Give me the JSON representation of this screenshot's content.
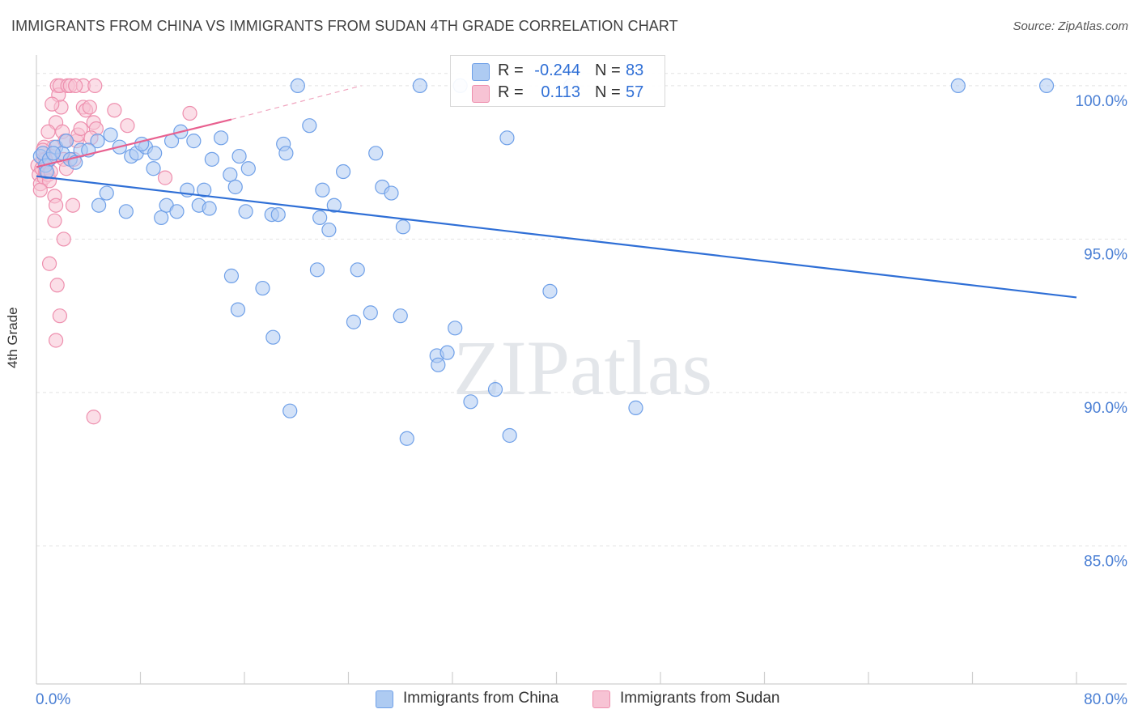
{
  "chart_data": {
    "type": "scatter",
    "title": "IMMIGRANTS FROM CHINA VS IMMIGRANTS FROM SUDAN 4TH GRADE CORRELATION CHART",
    "source": "Source: ZipAtlas.com",
    "xlabel": "",
    "ylabel": "4th Grade",
    "xlim": [
      0,
      80
    ],
    "ylim": [
      80.5,
      101.0
    ],
    "x_tick_labels": [
      "0.0%",
      "80.0%"
    ],
    "y_ticks": [
      85,
      90,
      95,
      100
    ],
    "y_tick_labels": [
      "85.0%",
      "90.0%",
      "95.0%",
      "100.0%"
    ],
    "grid": true,
    "watermark": "ZIPatlas",
    "series": [
      {
        "name": "Immigrants from China",
        "color": "#6fa0e8",
        "fill": "#aecbf2",
        "line_color": "#2f6fd6",
        "R": "-0.244",
        "N": "83",
        "trend": {
          "x0": 0,
          "y0": 97.05,
          "x1": 80,
          "y1": 93.1
        },
        "points": [
          [
            0.3,
            97.7
          ],
          [
            0.5,
            97.8
          ],
          [
            0.7,
            97.4
          ],
          [
            1.0,
            97.6
          ],
          [
            1.5,
            98.0
          ],
          [
            2.0,
            97.8
          ],
          [
            2.6,
            97.6
          ],
          [
            3.4,
            97.9
          ],
          [
            4.7,
            98.2
          ],
          [
            5.7,
            98.4
          ],
          [
            5.4,
            96.5
          ],
          [
            4.8,
            96.1
          ],
          [
            6.9,
            95.9
          ],
          [
            6.4,
            98.0
          ],
          [
            7.3,
            97.7
          ],
          [
            7.7,
            97.8
          ],
          [
            8.4,
            98.0
          ],
          [
            8.1,
            98.1
          ],
          [
            9.1,
            97.8
          ],
          [
            9.0,
            97.3
          ],
          [
            9.6,
            95.7
          ],
          [
            10.0,
            96.1
          ],
          [
            10.4,
            98.2
          ],
          [
            10.8,
            95.9
          ],
          [
            11.1,
            98.5
          ],
          [
            11.6,
            96.6
          ],
          [
            12.1,
            98.2
          ],
          [
            12.5,
            96.1
          ],
          [
            12.9,
            96.6
          ],
          [
            13.3,
            96.0
          ],
          [
            13.5,
            97.6
          ],
          [
            14.2,
            98.3
          ],
          [
            14.9,
            97.1
          ],
          [
            15.6,
            97.7
          ],
          [
            15.3,
            96.7
          ],
          [
            16.1,
            95.9
          ],
          [
            16.3,
            97.3
          ],
          [
            17.4,
            93.4
          ],
          [
            18.1,
            95.8
          ],
          [
            18.6,
            95.8
          ],
          [
            15.0,
            93.8
          ],
          [
            15.5,
            92.7
          ],
          [
            19.0,
            98.1
          ],
          [
            19.2,
            97.8
          ],
          [
            20.1,
            100.0
          ],
          [
            21.0,
            98.7
          ],
          [
            21.8,
            95.7
          ],
          [
            22.0,
            96.6
          ],
          [
            22.5,
            95.3
          ],
          [
            22.9,
            96.1
          ],
          [
            21.6,
            94.0
          ],
          [
            23.6,
            97.2
          ],
          [
            24.7,
            94.0
          ],
          [
            24.4,
            92.3
          ],
          [
            25.7,
            92.6
          ],
          [
            26.1,
            97.8
          ],
          [
            26.6,
            96.7
          ],
          [
            27.3,
            96.5
          ],
          [
            28.2,
            95.4
          ],
          [
            28.0,
            92.5
          ],
          [
            29.5,
            100.0
          ],
          [
            30.8,
            91.2
          ],
          [
            30.9,
            90.9
          ],
          [
            31.6,
            91.3
          ],
          [
            32.2,
            92.1
          ],
          [
            32.6,
            100.0
          ],
          [
            33.4,
            89.7
          ],
          [
            35.3,
            90.1
          ],
          [
            36.2,
            98.3
          ],
          [
            36.4,
            88.6
          ],
          [
            39.5,
            93.3
          ],
          [
            41.1,
            100.0
          ],
          [
            46.1,
            89.5
          ],
          [
            70.9,
            100.0
          ],
          [
            77.7,
            100.0
          ],
          [
            19.5,
            89.4
          ],
          [
            28.5,
            88.5
          ],
          [
            18.2,
            91.8
          ],
          [
            0.8,
            97.2
          ],
          [
            1.3,
            97.8
          ],
          [
            2.3,
            98.2
          ],
          [
            3.0,
            97.5
          ],
          [
            4.0,
            97.9
          ]
        ]
      },
      {
        "name": "Immigrants from Sudan",
        "color": "#ee8fae",
        "fill": "#f7c3d4",
        "line_color": "#e8608f",
        "R": "0.113",
        "N": "57",
        "trend": {
          "x0": 0,
          "y0": 97.35,
          "x1": 15,
          "y1": 98.9
        },
        "trend_dashed": {
          "x0": 15,
          "y0": 98.9,
          "x1": 25,
          "y1": 100.0
        },
        "points": [
          [
            0.1,
            97.4
          ],
          [
            0.2,
            97.1
          ],
          [
            0.3,
            96.8
          ],
          [
            0.4,
            97.3
          ],
          [
            0.5,
            97.6
          ],
          [
            0.6,
            97.0
          ],
          [
            0.7,
            97.2
          ],
          [
            0.8,
            97.5
          ],
          [
            0.9,
            97.1
          ],
          [
            1.0,
            96.9
          ],
          [
            1.1,
            97.2
          ],
          [
            1.2,
            97.7
          ],
          [
            1.3,
            98.0
          ],
          [
            1.4,
            96.4
          ],
          [
            1.5,
            98.8
          ],
          [
            1.6,
            100.0
          ],
          [
            1.7,
            99.7
          ],
          [
            1.8,
            100.0
          ],
          [
            1.9,
            99.3
          ],
          [
            2.0,
            98.5
          ],
          [
            2.1,
            97.6
          ],
          [
            2.2,
            98.2
          ],
          [
            2.3,
            97.3
          ],
          [
            2.4,
            100.0
          ],
          [
            2.6,
            100.0
          ],
          [
            2.9,
            97.6
          ],
          [
            3.1,
            98.2
          ],
          [
            3.2,
            98.4
          ],
          [
            3.4,
            98.6
          ],
          [
            3.6,
            99.3
          ],
          [
            3.8,
            99.2
          ],
          [
            4.1,
            99.3
          ],
          [
            4.4,
            98.8
          ],
          [
            4.6,
            98.6
          ],
          [
            4.2,
            98.3
          ],
          [
            1.0,
            94.2
          ],
          [
            1.6,
            93.5
          ],
          [
            1.8,
            92.5
          ],
          [
            1.5,
            91.7
          ],
          [
            2.1,
            95.0
          ],
          [
            1.4,
            95.6
          ],
          [
            1.5,
            96.1
          ],
          [
            2.8,
            96.1
          ],
          [
            1.2,
            99.4
          ],
          [
            0.9,
            98.5
          ],
          [
            0.6,
            98.0
          ],
          [
            0.3,
            96.6
          ],
          [
            0.5,
            97.9
          ],
          [
            0.7,
            97.6
          ],
          [
            9.9,
            97.0
          ],
          [
            11.8,
            99.1
          ],
          [
            7.0,
            98.7
          ],
          [
            6.0,
            99.2
          ],
          [
            3.6,
            100.0
          ],
          [
            4.5,
            100.0
          ],
          [
            3.0,
            100.0
          ],
          [
            4.4,
            89.2
          ]
        ]
      }
    ]
  },
  "legend": {
    "china_label": "Immigrants from China",
    "sudan_label": "Immigrants from Sudan"
  },
  "stats": {
    "r_label": "R =",
    "n_label": "N ="
  }
}
